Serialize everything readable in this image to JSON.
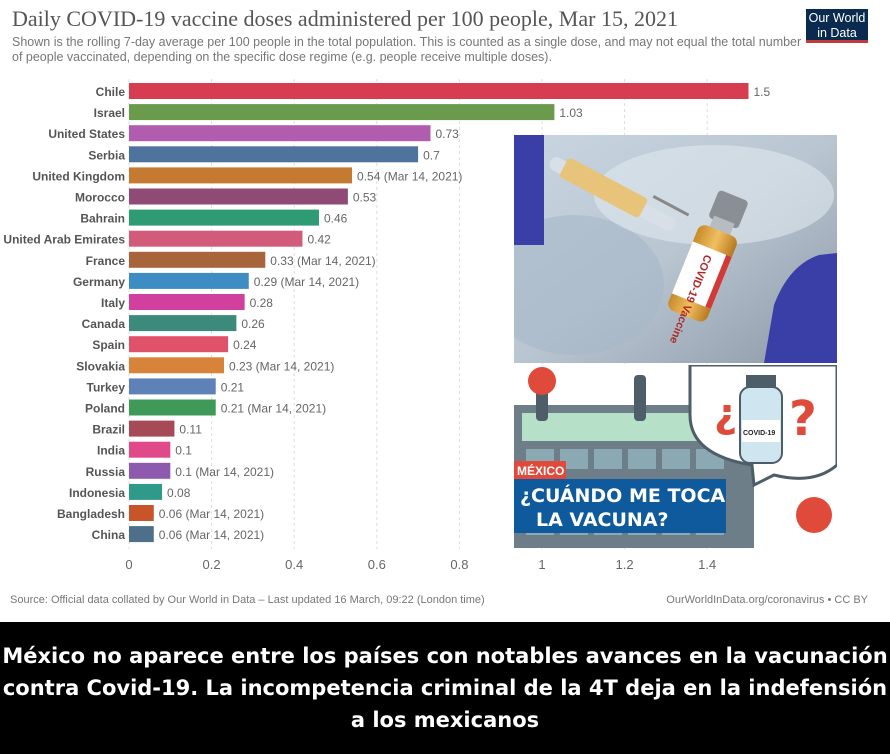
{
  "header": {
    "title": "Daily COVID-19 vaccine doses administered per 100 people, Mar 15, 2021",
    "subtitle": "Shown is the rolling 7-day average per 100 people in the total population. This is counted as a single dose, and may not equal the total number of people vaccinated, depending on the specific dose regime (e.g. people receive multiple doses).",
    "logo_line1": "Our World",
    "logo_line2": "in Data"
  },
  "chart_data": {
    "type": "bar",
    "orientation": "horizontal",
    "title": "Daily COVID-19 vaccine doses administered per 100 people, Mar 15, 2021",
    "xlim": [
      0,
      1.5
    ],
    "xticks": [
      "0",
      "0.2",
      "0.4",
      "0.6",
      "0.8",
      "1",
      "1.2",
      "1.4"
    ],
    "grid": "vertical dashed",
    "categories": [
      "Chile",
      "Israel",
      "United States",
      "Serbia",
      "United Kingdom",
      "Morocco",
      "Bahrain",
      "United Arab Emirates",
      "France",
      "Germany",
      "Italy",
      "Canada",
      "Spain",
      "Slovakia",
      "Turkey",
      "Poland",
      "Brazil",
      "India",
      "Russia",
      "Indonesia",
      "Bangladesh",
      "China"
    ],
    "values": [
      1.5,
      1.03,
      0.73,
      0.7,
      0.54,
      0.53,
      0.46,
      0.42,
      0.33,
      0.29,
      0.28,
      0.26,
      0.24,
      0.23,
      0.21,
      0.21,
      0.11,
      0.1,
      0.1,
      0.08,
      0.06,
      0.06
    ],
    "labels": [
      "1.5",
      "1.03",
      "0.73",
      "0.7",
      "0.54 (Mar 14, 2021)",
      "0.53",
      "0.46",
      "0.42",
      "0.33 (Mar 14, 2021)",
      "0.29 (Mar 14, 2021)",
      "0.28",
      "0.26",
      "0.24",
      "0.23 (Mar 14, 2021)",
      "0.21",
      "0.21 (Mar 14, 2021)",
      "0.11",
      "0.1",
      "0.1 (Mar 14, 2021)",
      "0.08",
      "0.06 (Mar 14, 2021)",
      "0.06 (Mar 14, 2021)"
    ],
    "colors": [
      "#d73c50",
      "#6a9a4c",
      "#b05db0",
      "#4e739c",
      "#c47a30",
      "#8f4a75",
      "#2f9b74",
      "#d25a7a",
      "#a8643a",
      "#3d8cc4",
      "#d1409e",
      "#3b8a7c",
      "#e0526a",
      "#d7843a",
      "#5e82b8",
      "#3f9a5a",
      "#a64a58",
      "#e04a8a",
      "#8e5ab0",
      "#2f9a8a",
      "#c8542a",
      "#4d6f8a"
    ]
  },
  "images": {
    "photo": "vaccine-syringe-photo",
    "promo_line1": "MÉXICO",
    "promo_line2": "¿CUÁNDO ME TOCA",
    "promo_line3": "LA VACUNA?",
    "vial_label": "COVID-19",
    "photo_vial_label": "COVID-19 Vaccine",
    "q_open": "¿",
    "q_close": "?"
  },
  "footer": {
    "source": "Source: Official data collated by Our World in Data – Last updated 16 March, 09:22 (London time)",
    "credit": "OurWorldInData.org/coronavirus • CC BY"
  },
  "caption": "México no aparece entre los países con notables avances en la vacunación contra Covid-19. La incompetencia criminal de la 4T deja en la indefensión a los mexicanos"
}
